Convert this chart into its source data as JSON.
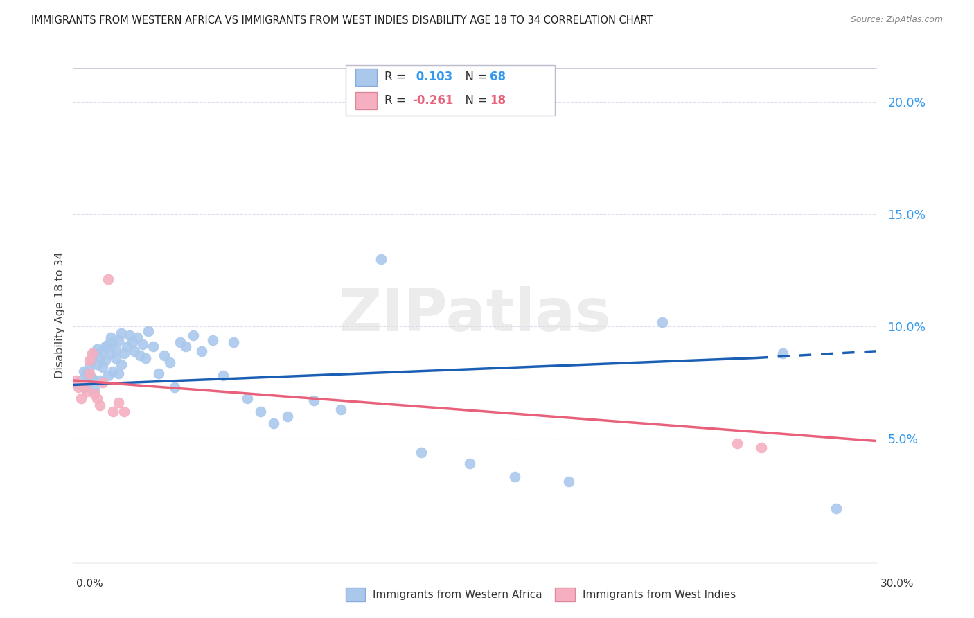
{
  "title": "IMMIGRANTS FROM WESTERN AFRICA VS IMMIGRANTS FROM WEST INDIES DISABILITY AGE 18 TO 34 CORRELATION CHART",
  "source": "Source: ZipAtlas.com",
  "ylabel": "Disability Age 18 to 34",
  "xlim": [
    0.0,
    0.3
  ],
  "ylim": [
    -0.005,
    0.215
  ],
  "yticks": [
    0.05,
    0.1,
    0.15,
    0.2
  ],
  "ytick_labels": [
    "5.0%",
    "10.0%",
    "15.0%",
    "20.0%"
  ],
  "blue_color": "#aac8ec",
  "pink_color": "#f5afc0",
  "blue_line_color": "#1a5fb4",
  "pink_line_color": "#e8607a",
  "watermark_text": "ZIPatlas",
  "footer_label1": "Immigrants from Western Africa",
  "footer_label2": "Immigrants from West Indies",
  "blue_r": "0.103",
  "blue_n": "68",
  "pink_r": "-0.261",
  "pink_n": "18",
  "blue_trend_y0": 0.074,
  "blue_trend_y1_solid": 0.086,
  "blue_trend_x_solid_end": 0.255,
  "blue_trend_y1_dash": 0.089,
  "blue_trend_x_dash_end": 0.3,
  "pink_trend_y0": 0.076,
  "pink_trend_y1": 0.049,
  "pink_trend_x_end": 0.3,
  "blue_x": [
    0.002,
    0.003,
    0.004,
    0.004,
    0.005,
    0.005,
    0.006,
    0.006,
    0.007,
    0.007,
    0.008,
    0.008,
    0.009,
    0.009,
    0.01,
    0.01,
    0.011,
    0.011,
    0.012,
    0.012,
    0.013,
    0.013,
    0.014,
    0.014,
    0.015,
    0.015,
    0.016,
    0.016,
    0.017,
    0.017,
    0.018,
    0.018,
    0.019,
    0.02,
    0.021,
    0.022,
    0.023,
    0.024,
    0.025,
    0.026,
    0.027,
    0.028,
    0.03,
    0.032,
    0.034,
    0.036,
    0.038,
    0.04,
    0.042,
    0.045,
    0.048,
    0.052,
    0.056,
    0.06,
    0.065,
    0.07,
    0.075,
    0.08,
    0.09,
    0.1,
    0.115,
    0.13,
    0.148,
    0.165,
    0.185,
    0.22,
    0.265,
    0.285
  ],
  "blue_y": [
    0.074,
    0.076,
    0.073,
    0.08,
    0.079,
    0.075,
    0.082,
    0.078,
    0.085,
    0.077,
    0.088,
    0.072,
    0.083,
    0.09,
    0.086,
    0.076,
    0.089,
    0.082,
    0.091,
    0.085,
    0.078,
    0.092,
    0.088,
    0.095,
    0.08,
    0.093,
    0.09,
    0.086,
    0.094,
    0.079,
    0.097,
    0.083,
    0.088,
    0.091,
    0.096,
    0.093,
    0.089,
    0.095,
    0.087,
    0.092,
    0.086,
    0.098,
    0.091,
    0.079,
    0.087,
    0.084,
    0.073,
    0.093,
    0.091,
    0.096,
    0.089,
    0.094,
    0.078,
    0.093,
    0.068,
    0.062,
    0.057,
    0.06,
    0.067,
    0.063,
    0.13,
    0.044,
    0.039,
    0.033,
    0.031,
    0.102,
    0.088,
    0.019
  ],
  "pink_x": [
    0.001,
    0.002,
    0.003,
    0.004,
    0.005,
    0.006,
    0.006,
    0.007,
    0.008,
    0.009,
    0.01,
    0.011,
    0.013,
    0.015,
    0.017,
    0.019,
    0.248,
    0.257
  ],
  "pink_y": [
    0.076,
    0.073,
    0.068,
    0.074,
    0.071,
    0.085,
    0.079,
    0.088,
    0.07,
    0.068,
    0.065,
    0.075,
    0.121,
    0.062,
    0.066,
    0.062,
    0.048,
    0.046
  ]
}
